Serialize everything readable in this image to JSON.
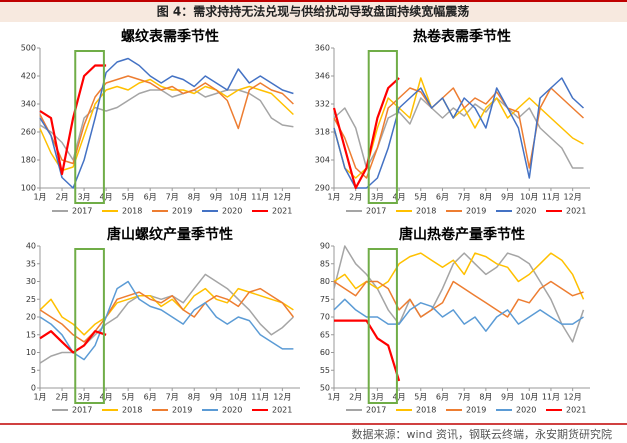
{
  "header": {
    "title": "图 4：需求持持无法兑现与供给扰动导致盘面持续宽幅震荡"
  },
  "source": "数据来源：wind 资讯，钢联云终端，永安期货研究院",
  "chart_data": [
    {
      "type": "line",
      "title": "螺纹表需季节性",
      "x": [
        1,
        1.5,
        2,
        2.5,
        3,
        3.5,
        4,
        4.5,
        5,
        5.5,
        6,
        6.5,
        7,
        7.5,
        8,
        8.5,
        9,
        9.5,
        10,
        10.5,
        11,
        11.5,
        12,
        12.5
      ],
      "xlim": [
        1,
        12.8
      ],
      "xticks": [
        {
          "value": 1,
          "label": "1月"
        },
        {
          "value": 2,
          "label": "2月"
        },
        {
          "value": 3,
          "label": "3月"
        },
        {
          "value": 4,
          "label": "4月"
        },
        {
          "value": 5,
          "label": "5月"
        },
        {
          "value": 6,
          "label": "6月"
        },
        {
          "value": 7,
          "label": "7月"
        },
        {
          "value": 8,
          "label": "8月"
        },
        {
          "value": 9,
          "label": "9月"
        },
        {
          "value": 10,
          "label": "10月"
        },
        {
          "value": 11,
          "label": "11月"
        },
        {
          "value": 12,
          "label": "12月"
        }
      ],
      "ylim": [
        100,
        500
      ],
      "yticks": [
        100,
        180,
        260,
        340,
        420,
        500
      ],
      "highlight": [
        2.6,
        3.9
      ],
      "series": [
        {
          "name": "2017",
          "color": "#a5a5a5",
          "values": [
            280,
            260,
            230,
            180,
            300,
            330,
            320,
            330,
            350,
            370,
            380,
            380,
            360,
            370,
            380,
            360,
            370,
            380,
            380,
            370,
            350,
            300,
            280,
            275
          ]
        },
        {
          "name": "2018",
          "color": "#ffc000",
          "values": [
            270,
            200,
            150,
            160,
            250,
            340,
            380,
            390,
            380,
            400,
            410,
            390,
            380,
            380,
            370,
            390,
            380,
            360,
            380,
            390,
            380,
            370,
            340,
            310
          ]
        },
        {
          "name": "2019",
          "color": "#ed7d31",
          "values": [
            310,
            250,
            180,
            170,
            280,
            360,
            400,
            410,
            420,
            410,
            400,
            380,
            390,
            370,
            380,
            400,
            380,
            350,
            270,
            380,
            400,
            380,
            370,
            340
          ]
        },
        {
          "name": "2020",
          "color": "#4472c4",
          "values": [
            300,
            250,
            130,
            100,
            180,
            300,
            430,
            460,
            470,
            450,
            420,
            400,
            420,
            410,
            390,
            420,
            400,
            380,
            440,
            400,
            420,
            400,
            380,
            370
          ]
        },
        {
          "name": "2021",
          "color": "#ff0000",
          "values": [
            320,
            300,
            140,
            300,
            420,
            450,
            450,
            null,
            null,
            null,
            null,
            null,
            null,
            null,
            null,
            null,
            null,
            null,
            null,
            null,
            null,
            null,
            null,
            null
          ]
        }
      ]
    },
    {
      "type": "line",
      "title": "热卷表需季节性",
      "x": [
        1,
        1.5,
        2,
        2.5,
        3,
        3.5,
        4,
        4.5,
        5,
        5.5,
        6,
        6.5,
        7,
        7.5,
        8,
        8.5,
        9,
        9.5,
        10,
        10.5,
        11,
        11.5,
        12,
        12.5
      ],
      "xlim": [
        1,
        12.8
      ],
      "xticks": [
        {
          "value": 1,
          "label": "1月"
        },
        {
          "value": 2,
          "label": "2月"
        },
        {
          "value": 3,
          "label": "3月"
        },
        {
          "value": 4,
          "label": "4月"
        },
        {
          "value": 5,
          "label": "5月"
        },
        {
          "value": 6,
          "label": "6月"
        },
        {
          "value": 7,
          "label": "7月"
        },
        {
          "value": 8,
          "label": "8月"
        },
        {
          "value": 9,
          "label": "9月"
        },
        {
          "value": 10,
          "label": "10月"
        },
        {
          "value": 11,
          "label": "11月"
        },
        {
          "value": 12,
          "label": "12月"
        }
      ],
      "ylim": [
        290,
        360
      ],
      "yticks": [
        290,
        304,
        318,
        332,
        346,
        360
      ],
      "highlight": [
        2.6,
        3.9
      ],
      "series": [
        {
          "name": "2017",
          "color": "#a5a5a5",
          "values": [
            325,
            330,
            320,
            300,
            310,
            325,
            328,
            322,
            335,
            330,
            325,
            330,
            326,
            332,
            328,
            335,
            330,
            325,
            330,
            320,
            315,
            310,
            300,
            300
          ]
        },
        {
          "name": "2018",
          "color": "#ffc000",
          "values": [
            320,
            300,
            295,
            300,
            320,
            335,
            330,
            325,
            345,
            330,
            335,
            325,
            330,
            320,
            330,
            335,
            325,
            330,
            335,
            330,
            325,
            320,
            315,
            312
          ]
        },
        {
          "name": "2019",
          "color": "#ed7d31",
          "values": [
            325,
            315,
            300,
            295,
            310,
            330,
            335,
            340,
            338,
            330,
            335,
            340,
            330,
            335,
            332,
            338,
            330,
            328,
            300,
            330,
            340,
            335,
            330,
            325
          ]
        },
        {
          "name": "2020",
          "color": "#4472c4",
          "values": [
            320,
            300,
            290,
            290,
            295,
            310,
            330,
            335,
            340,
            330,
            335,
            325,
            335,
            330,
            320,
            340,
            330,
            320,
            295,
            335,
            340,
            345,
            335,
            330
          ]
        },
        {
          "name": "2021",
          "color": "#ff0000",
          "values": [
            330,
            310,
            290,
            300,
            325,
            340,
            345,
            null,
            null,
            null,
            null,
            null,
            null,
            null,
            null,
            null,
            null,
            null,
            null,
            null,
            null,
            null,
            null,
            null
          ]
        }
      ]
    },
    {
      "type": "line",
      "title": "唐山螺纹产量季节性",
      "x": [
        1,
        1.5,
        2,
        2.5,
        3,
        3.5,
        4,
        4.5,
        5,
        5.5,
        6,
        6.5,
        7,
        7.5,
        8,
        8.5,
        9,
        9.5,
        10,
        10.5,
        11,
        11.5,
        12,
        12.5
      ],
      "xlim": [
        1,
        12.8
      ],
      "xticks": [
        {
          "value": 1,
          "label": "1月"
        },
        {
          "value": 2,
          "label": "2月"
        },
        {
          "value": 3,
          "label": "3月"
        },
        {
          "value": 4,
          "label": "4月"
        },
        {
          "value": 5,
          "label": "5月"
        },
        {
          "value": 6,
          "label": "6月"
        },
        {
          "value": 7,
          "label": "7月"
        },
        {
          "value": 8,
          "label": "8月"
        },
        {
          "value": 9,
          "label": "9月"
        },
        {
          "value": 10,
          "label": "10月"
        },
        {
          "value": 11,
          "label": "11月"
        },
        {
          "value": 12,
          "label": "12月"
        }
      ],
      "ylim": [
        0,
        40
      ],
      "yticks": [
        0,
        5,
        10,
        15,
        20,
        25,
        30,
        35,
        40
      ],
      "highlight": [
        2.6,
        3.9
      ],
      "series": [
        {
          "name": "2017",
          "color": "#a5a5a5",
          "values": [
            7,
            9,
            10,
            10,
            12,
            15,
            18,
            20,
            24,
            26,
            26,
            25,
            26,
            24,
            28,
            32,
            30,
            28,
            25,
            22,
            18,
            15,
            17,
            20
          ]
        },
        {
          "name": "2018",
          "color": "#ffc000",
          "values": [
            22,
            25,
            20,
            18,
            15,
            18,
            20,
            24,
            25,
            26,
            26,
            23,
            25,
            22,
            26,
            28,
            25,
            24,
            28,
            27,
            26,
            25,
            24,
            22
          ]
        },
        {
          "name": "2019",
          "color": "#ed7d31",
          "values": [
            22,
            20,
            18,
            15,
            13,
            16,
            20,
            25,
            26,
            27,
            25,
            24,
            26,
            22,
            20,
            24,
            26,
            25,
            23,
            27,
            28,
            26,
            24,
            20
          ]
        },
        {
          "name": "2020",
          "color": "#5b9bd5",
          "values": [
            20,
            18,
            15,
            10,
            8,
            12,
            20,
            28,
            30,
            25,
            23,
            22,
            20,
            18,
            22,
            24,
            20,
            18,
            20,
            19,
            15,
            13,
            11,
            11
          ]
        },
        {
          "name": "2021",
          "color": "#ff0000",
          "values": [
            14,
            16,
            13,
            10,
            12,
            16,
            15,
            null,
            null,
            null,
            null,
            null,
            null,
            null,
            null,
            null,
            null,
            null,
            null,
            null,
            null,
            null,
            null,
            null
          ]
        }
      ]
    },
    {
      "type": "line",
      "title": "唐山热卷产量季节性",
      "x": [
        1,
        1.5,
        2,
        2.5,
        3,
        3.5,
        4,
        4.5,
        5,
        5.5,
        6,
        6.5,
        7,
        7.5,
        8,
        8.5,
        9,
        9.5,
        10,
        10.5,
        11,
        11.5,
        12,
        12.5
      ],
      "xlim": [
        1,
        12.8
      ],
      "xticks": [
        {
          "value": 1,
          "label": "1月"
        },
        {
          "value": 2,
          "label": "2月"
        },
        {
          "value": 3,
          "label": "3月"
        },
        {
          "value": 4,
          "label": "4月"
        },
        {
          "value": 5,
          "label": "5月"
        },
        {
          "value": 6,
          "label": "6月"
        },
        {
          "value": 7,
          "label": "7月"
        },
        {
          "value": 8,
          "label": "8月"
        },
        {
          "value": 9,
          "label": "9月"
        },
        {
          "value": 10,
          "label": "10月"
        },
        {
          "value": 11,
          "label": "11月"
        },
        {
          "value": 12,
          "label": "12月"
        }
      ],
      "ylim": [
        50,
        90
      ],
      "yticks": [
        50,
        55,
        60,
        65,
        70,
        75,
        80,
        85,
        90
      ],
      "highlight": [
        2.6,
        3.9
      ],
      "series": [
        {
          "name": "2017",
          "color": "#a5a5a5",
          "values": [
            78,
            90,
            85,
            82,
            78,
            72,
            68,
            75,
            70,
            72,
            78,
            85,
            88,
            85,
            82,
            84,
            88,
            87,
            85,
            80,
            75,
            68,
            63,
            72
          ]
        },
        {
          "name": "2018",
          "color": "#ffc000",
          "values": [
            80,
            82,
            78,
            80,
            78,
            80,
            85,
            87,
            88,
            86,
            84,
            86,
            82,
            88,
            87,
            85,
            84,
            80,
            82,
            85,
            88,
            86,
            82,
            75
          ]
        },
        {
          "name": "2019",
          "color": "#ed7d31",
          "values": [
            80,
            78,
            76,
            80,
            80,
            78,
            72,
            75,
            70,
            72,
            74,
            80,
            78,
            76,
            74,
            72,
            70,
            75,
            74,
            78,
            80,
            78,
            76,
            77
          ]
        },
        {
          "name": "2020",
          "color": "#5b9bd5",
          "values": [
            72,
            75,
            72,
            70,
            70,
            68,
            68,
            72,
            74,
            73,
            70,
            72,
            68,
            70,
            66,
            70,
            72,
            68,
            70,
            72,
            70,
            68,
            68,
            70
          ]
        },
        {
          "name": "2021",
          "color": "#ff0000",
          "values": [
            69,
            69,
            69,
            69,
            64,
            62,
            52,
            null,
            null,
            null,
            null,
            null,
            null,
            null,
            null,
            null,
            null,
            null,
            null,
            null,
            null,
            null,
            null,
            null
          ]
        }
      ]
    }
  ]
}
